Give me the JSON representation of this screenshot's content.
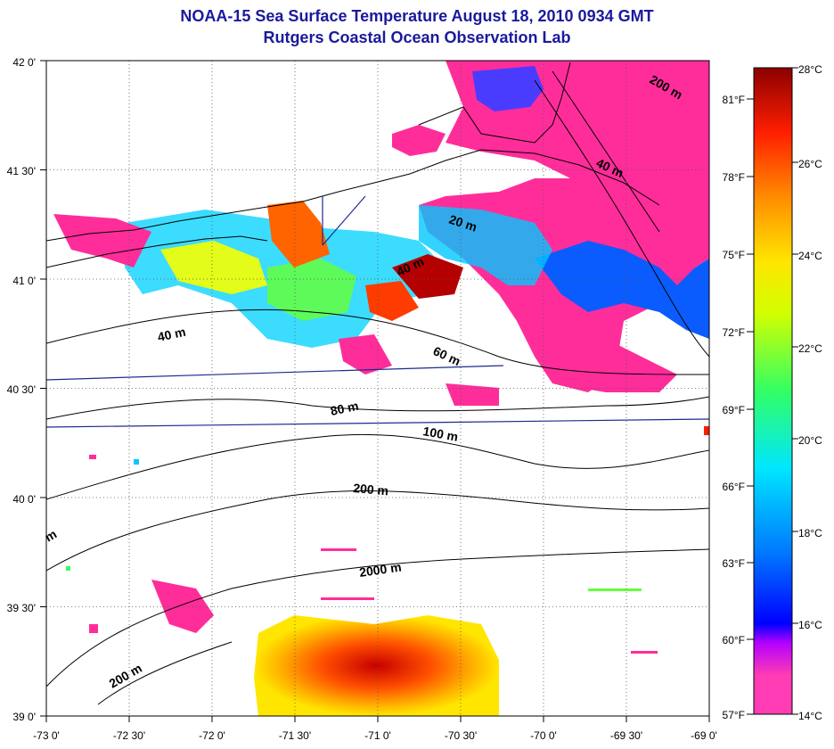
{
  "header": {
    "title": "NOAA-15 Sea Surface Temperature August 18, 2010 0934 GMT",
    "subtitle": "Rutgers Coastal Ocean Observation Lab"
  },
  "map": {
    "longitude_labels": [
      "-73 0'",
      "-72 30'",
      "-72 0'",
      "-71 30'",
      "-71 0'",
      "-70 30'",
      "-70 0'",
      "-69 30'",
      "-69 0'"
    ],
    "latitude_labels": [
      "42 0'",
      "41 30'",
      "41 0'",
      "40 30'",
      "40 0'",
      "39 30'",
      "39 0'"
    ],
    "grid": "dotted",
    "contour_labels": [
      "200 m",
      "40 m",
      "20 m",
      "40 m",
      "40 m",
      "60 m",
      "80 m",
      "100 m",
      "200 m",
      "2000 m",
      "200 m",
      "m"
    ],
    "land_color": "#ffffff",
    "cloud_mask_color": "#ff2d9a",
    "transect_color": "#1e2a8c"
  },
  "colorbar": {
    "celsius_labels": [
      "28°C",
      "26°C",
      "24°C",
      "22°C",
      "20°C",
      "18°C",
      "16°C",
      "14°C"
    ],
    "fahrenheit_labels": [
      "81°F",
      "78°F",
      "75°F",
      "72°F",
      "69°F",
      "66°F",
      "63°F",
      "60°F",
      "57°F"
    ],
    "min_c": 14,
    "max_c": 28,
    "colors": [
      "#ff3cb4",
      "#b400ff",
      "#0000ff",
      "#0078ff",
      "#00e6ff",
      "#32ff64",
      "#d2ff00",
      "#ffe600",
      "#ff8c00",
      "#ff1e00",
      "#dc0000",
      "#8c0000"
    ]
  }
}
